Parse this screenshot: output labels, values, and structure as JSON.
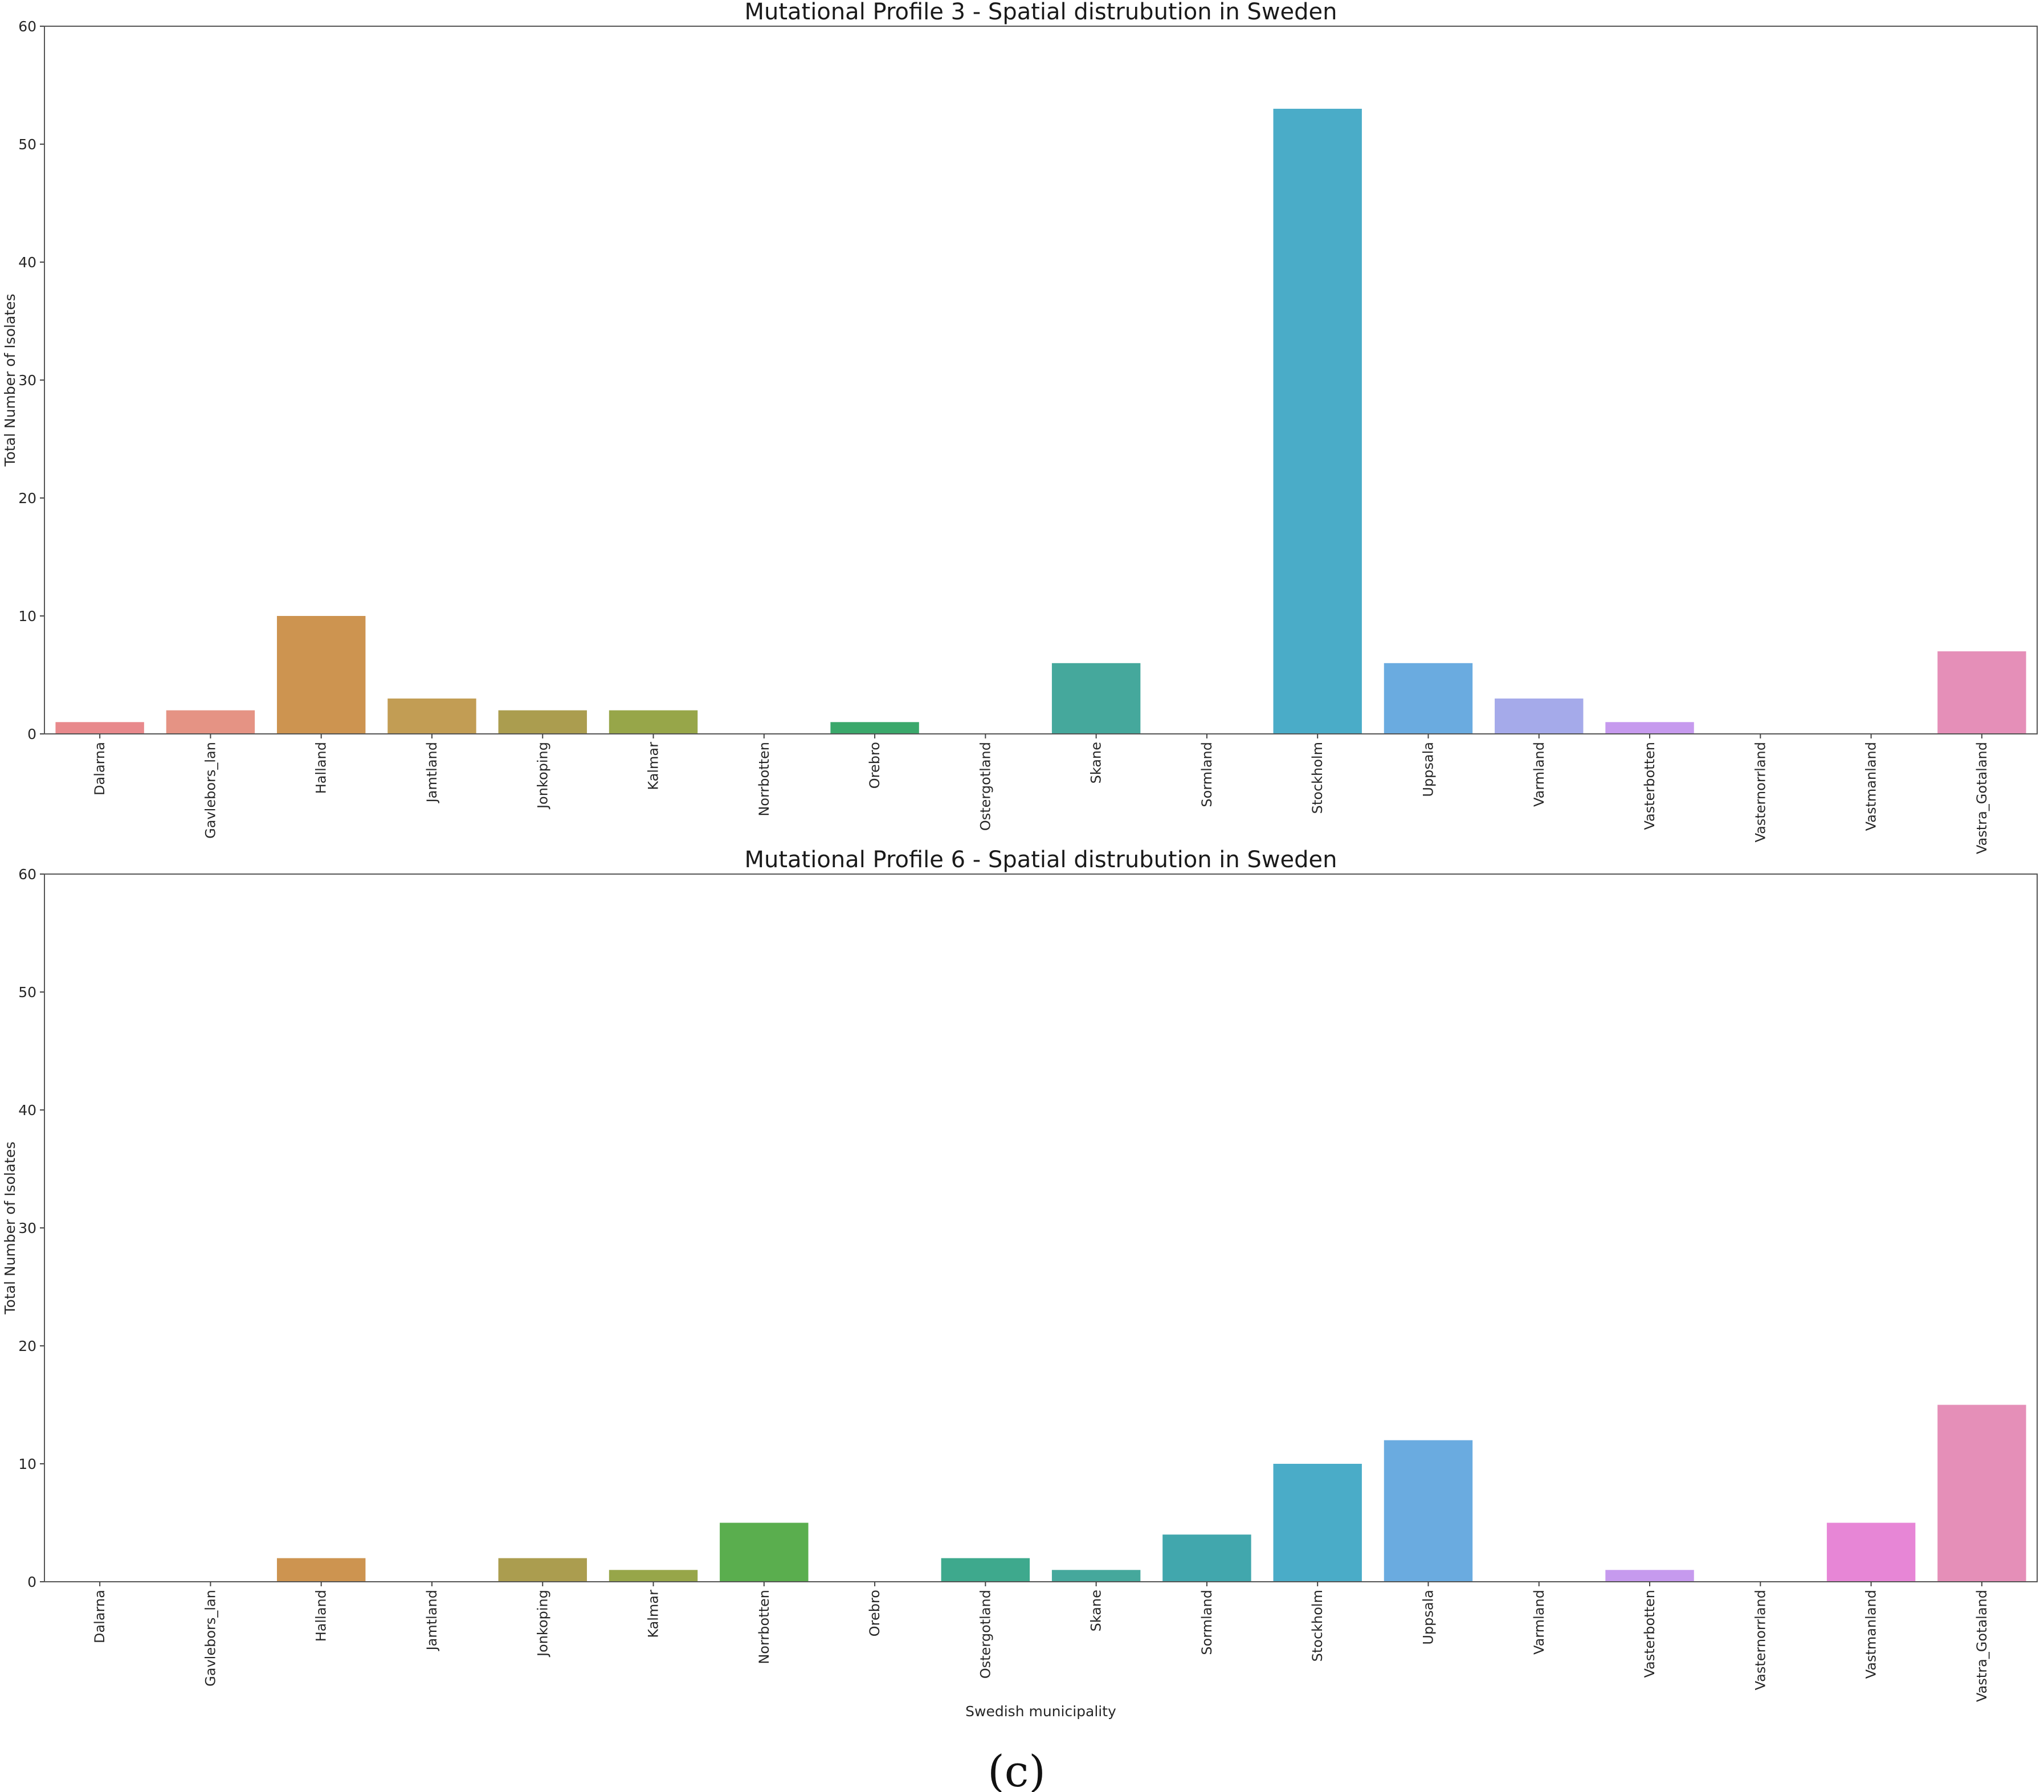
{
  "caption": "(c)",
  "chart_data": [
    {
      "type": "bar",
      "title": "Mutational Profile 3 - Spatial distrubution in Sweden",
      "xlabel": "",
      "ylabel": "Total Number of Isolates",
      "ylim": [
        0,
        60
      ],
      "yticks": [
        "0",
        "10",
        "20",
        "30",
        "40",
        "50",
        "60"
      ],
      "categories": [
        "Dalarna",
        "Gavlebors_lan",
        "Halland",
        "Jamtland",
        "Jonkoping",
        "Kalmar",
        "Norrbotten",
        "Orebro",
        "Ostergotland",
        "Skane",
        "Sormland",
        "Stockholm",
        "Uppsala",
        "Varmland",
        "Vasterbotten",
        "Vasternorrland",
        "Vastmanland",
        "Vastra_Gotaland"
      ],
      "values": [
        1,
        2,
        10,
        3,
        2,
        2,
        0,
        1,
        0,
        6,
        0,
        53,
        6,
        3,
        1,
        0,
        0,
        7
      ],
      "colors": [
        "#e8898c",
        "#e59384",
        "#cd9450",
        "#c29d54",
        "#ab9d4f",
        "#97a649",
        "#5aae4e",
        "#3aa86b",
        "#3ea98d",
        "#45a89c",
        "#41a7ad",
        "#4aacc8",
        "#6aabe0",
        "#a5aaea",
        "#c69aee",
        "#e48fe0",
        "#e786d6",
        "#e58fb8"
      ],
      "grid": false,
      "legend": "none"
    },
    {
      "type": "bar",
      "title": "Mutational Profile 6 - Spatial distrubution in Sweden",
      "xlabel": "Swedish municipality",
      "ylabel": "Total Number of Isolates",
      "ylim": [
        0,
        60
      ],
      "yticks": [
        "0",
        "10",
        "20",
        "30",
        "40",
        "50",
        "60"
      ],
      "categories": [
        "Dalarna",
        "Gavlebors_lan",
        "Halland",
        "Jamtland",
        "Jonkoping",
        "Kalmar",
        "Norrbotten",
        "Orebro",
        "Ostergotland",
        "Skane",
        "Sormland",
        "Stockholm",
        "Uppsala",
        "Varmland",
        "Vasterbotten",
        "Vasternorrland",
        "Vastmanland",
        "Vastra_Gotaland"
      ],
      "values": [
        0,
        0,
        2,
        0,
        2,
        1,
        5,
        0,
        2,
        1,
        4,
        10,
        12,
        0,
        1,
        0,
        5,
        15
      ],
      "colors": [
        "#e8898c",
        "#e59384",
        "#cd9450",
        "#c29d54",
        "#ab9d4f",
        "#97a649",
        "#5aae4e",
        "#3aa86b",
        "#3ea98d",
        "#45a89c",
        "#41a7ad",
        "#4aacc8",
        "#6aabe0",
        "#a5aaea",
        "#c69aee",
        "#e48fe0",
        "#e786d6",
        "#e58fb8"
      ],
      "grid": false,
      "legend": "none"
    }
  ]
}
